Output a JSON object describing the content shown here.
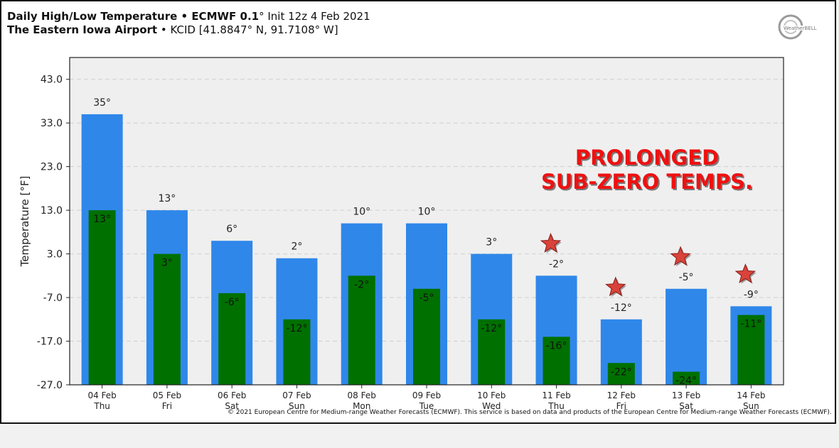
{
  "header": {
    "title_bold": "Daily High/Low Temperature • ECMWF 0.1",
    "title_rest": "° Init 12z 4 Feb 2021",
    "location_bold": "The Eastern Iowa Airport",
    "location_rest": " • KCID [41.8847° N, 91.7108° W]"
  },
  "logo": {
    "text": "WeatherBELL"
  },
  "annotation": {
    "line1": "PROLONGED",
    "line2": "SUB-ZERO TEMPS."
  },
  "copyright": "© 2021 European Centre for Medium-range Weather Forecasts (ECMWF). This service is based on data and products of the European Centre for Medium-range Weather Forecasts (ECMWF).",
  "chart_data": {
    "type": "bar",
    "ylabel": "Temperature [°F]",
    "ylim": [
      -27,
      48
    ],
    "yticks": [
      "43.0",
      "33.0",
      "23.0",
      "13.0",
      "3.0",
      "-7.0",
      "-17.0",
      "-27.0"
    ],
    "grid": true,
    "colors": {
      "high": "#2f87ea",
      "low": "#007000",
      "star": "#d9433a",
      "annotation": "#ee1111"
    },
    "categories": [
      {
        "date": "04 Feb",
        "day": "Thu"
      },
      {
        "date": "05 Feb",
        "day": "Fri"
      },
      {
        "date": "06 Feb",
        "day": "Sat"
      },
      {
        "date": "07 Feb",
        "day": "Sun"
      },
      {
        "date": "08 Feb",
        "day": "Mon"
      },
      {
        "date": "09 Feb",
        "day": "Tue"
      },
      {
        "date": "10 Feb",
        "day": "Wed"
      },
      {
        "date": "11 Feb",
        "day": "Thu"
      },
      {
        "date": "12 Feb",
        "day": "Fri"
      },
      {
        "date": "13 Feb",
        "day": "Sat"
      },
      {
        "date": "14 Feb",
        "day": "Sun"
      }
    ],
    "series": [
      {
        "values": [
          35,
          13,
          6,
          2,
          10,
          10,
          3,
          -2,
          -12,
          -5,
          -9
        ],
        "labels": [
          "35°",
          "13°",
          "6°",
          "2°",
          "10°",
          "10°",
          "3°",
          "-2°",
          "-12°",
          "-5°",
          "-9°"
        ]
      },
      {
        "values": [
          13,
          3,
          -6,
          -12,
          -2,
          -5,
          -12,
          -16,
          -22,
          -24,
          -11
        ],
        "labels": [
          "13°",
          "3°",
          "-6°",
          "-12°",
          "-2°",
          "-5°",
          "-12°",
          "-16°",
          "-22°",
          "-24°",
          "-11°"
        ]
      }
    ],
    "star_days": [
      "11 Feb",
      "12 Feb",
      "13 Feb",
      "14 Feb"
    ]
  }
}
